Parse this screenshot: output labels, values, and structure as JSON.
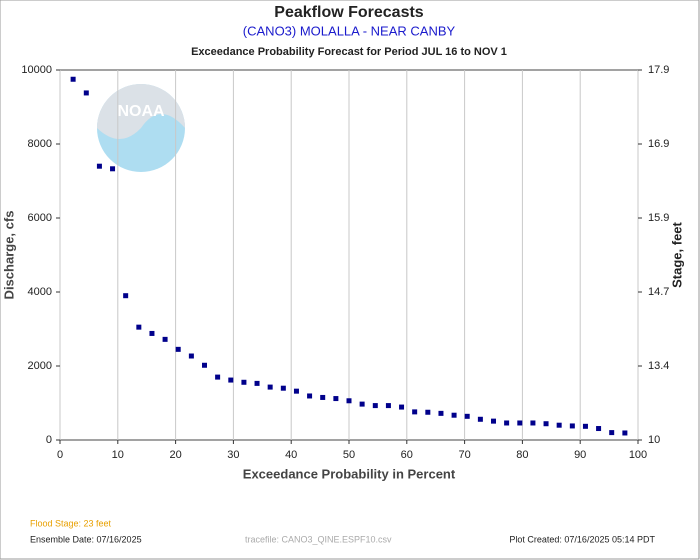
{
  "chart_data": {
    "type": "scatter",
    "title": "Peakflow Forecasts",
    "subtitle": "(CANO3) MOLALLA - NEAR CANBY",
    "subtitle2": "Exceedance Probability Forecast for Period JUL 16 to NOV 1",
    "x_label": "Exceedance Probability in Percent",
    "y_label": "Discharge, cfs",
    "y2_label": "Stage, feet",
    "logo_text": "NOAA",
    "color": "#00008b",
    "grid": true,
    "xlim": [
      0,
      100
    ],
    "xticks": [
      0,
      10,
      20,
      30,
      40,
      50,
      60,
      70,
      80,
      90,
      100
    ],
    "ylim": [
      0,
      10000
    ],
    "yticks": [
      0,
      2000,
      4000,
      6000,
      8000,
      10000
    ],
    "y2ticks": [
      10.0,
      13.4,
      14.7,
      15.9,
      16.9,
      17.9
    ],
    "x": [
      2.27,
      4.55,
      6.82,
      9.09,
      11.36,
      13.64,
      15.91,
      18.18,
      20.45,
      22.73,
      25.0,
      27.27,
      29.55,
      31.82,
      34.09,
      36.36,
      38.64,
      40.91,
      43.18,
      45.45,
      47.73,
      50.0,
      52.27,
      54.55,
      56.82,
      59.09,
      61.36,
      63.64,
      65.91,
      68.18,
      70.45,
      72.73,
      75.0,
      77.27,
      79.55,
      81.82,
      84.09,
      86.36,
      88.64,
      90.91,
      93.18,
      95.45,
      97.73
    ],
    "values": [
      9750,
      9380,
      7400,
      7330,
      3900,
      3050,
      2880,
      2720,
      2450,
      2270,
      2020,
      1700,
      1620,
      1560,
      1530,
      1430,
      1400,
      1320,
      1190,
      1150,
      1120,
      1060,
      970,
      930,
      930,
      890,
      760,
      750,
      720,
      670,
      640,
      560,
      510,
      460,
      460,
      460,
      440,
      400,
      380,
      370,
      310,
      200,
      190
    ]
  },
  "footer": {
    "flood_stage": "Flood Stage: 23 feet",
    "ensemble_date": "Ensemble Date: 07/16/2025",
    "tracefile": "tracefile: CANO3_QINE.ESPF10.csv",
    "plot_created": "Plot Created: 07/16/2025 05:14 PDT"
  }
}
